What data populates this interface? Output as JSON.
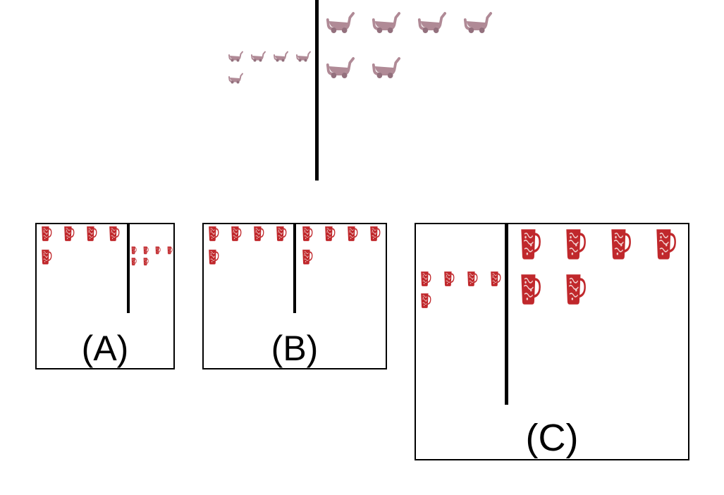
{
  "prompt": {
    "item_icon": "toy-stroller-icon",
    "left_count": 5,
    "right_count": 6,
    "left_icon_scale": "small",
    "right_icon_scale": "large"
  },
  "options": [
    {
      "label": "(A)",
      "item_icon": "mug-icon",
      "left_count": 5,
      "right_count": 6,
      "left_icon_scale": "medium",
      "right_icon_scale": "tiny"
    },
    {
      "label": "(B)",
      "item_icon": "mug-icon",
      "left_count": 5,
      "right_count": 5,
      "left_icon_scale": "medium",
      "right_icon_scale": "medium"
    },
    {
      "label": "(C)",
      "item_icon": "mug-icon",
      "left_count": 5,
      "right_count": 6,
      "left_icon_scale": "small",
      "right_icon_scale": "large"
    }
  ],
  "colors": {
    "stroller": "#b08a96",
    "stroller_dark": "#93707d",
    "mug": "#c0282c",
    "mug_light": "#f2d0cf",
    "line": "#000000"
  }
}
